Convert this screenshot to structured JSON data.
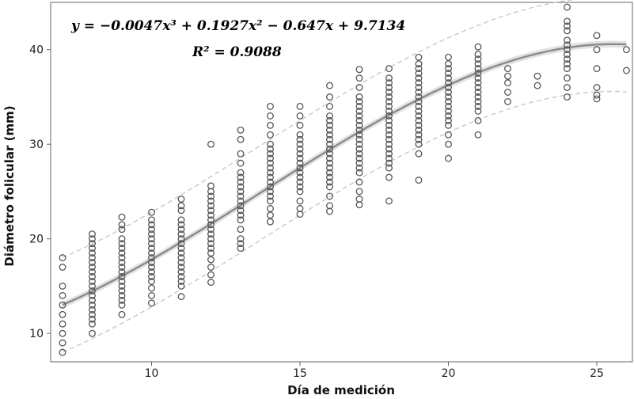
{
  "chart_data": {
    "type": "scatter",
    "title": "",
    "xlabel": "Día de medición",
    "ylabel": "Diámetro folicular (mm)",
    "xlim": [
      6.6,
      26.2
    ],
    "ylim": [
      7.0,
      45.0
    ],
    "x_ticks": [
      10,
      15,
      20,
      25
    ],
    "y_ticks": [
      10,
      20,
      30,
      40
    ],
    "equation": "y = −0.0047x³ + 0.1927x² − 0.647x + 9.7134",
    "r_squared": "R² = 0.9088",
    "fit": {
      "type": "cubic",
      "coefficients": {
        "a3": -0.0047,
        "a2": 0.1927,
        "a1": -0.647,
        "a0": 9.7134
      },
      "x_range": [
        7,
        26
      ],
      "prediction_band_halfwidth": 5
    },
    "points": [
      {
        "x": 7,
        "y": [
          8.0,
          9.0,
          10.0,
          11.0,
          12.0,
          13.0,
          14.0,
          15.0,
          17.0,
          18.0
        ]
      },
      {
        "x": 8,
        "y": [
          10.0,
          11.0,
          11.5,
          12.0,
          12.5,
          13.0,
          13.5,
          14.0,
          14.5,
          15.0,
          15.5,
          16.0,
          16.5,
          17.0,
          17.5,
          18.0,
          18.5,
          19.0,
          19.5,
          20.0,
          20.5
        ]
      },
      {
        "x": 9,
        "y": [
          12.0,
          13.0,
          13.5,
          14.0,
          14.5,
          15.0,
          15.5,
          16.0,
          16.5,
          17.0,
          17.5,
          18.0,
          18.5,
          19.0,
          19.5,
          20.0,
          21.0,
          21.5,
          22.3
        ]
      },
      {
        "x": 10,
        "y": [
          13.2,
          14.0,
          14.8,
          15.5,
          16.0,
          16.5,
          17.0,
          17.5,
          18.0,
          18.5,
          19.0,
          19.5,
          20.0,
          20.5,
          21.0,
          21.5,
          22.0,
          22.8
        ]
      },
      {
        "x": 11,
        "y": [
          13.9,
          15.0,
          15.5,
          16.0,
          16.5,
          17.0,
          17.5,
          18.0,
          18.5,
          19.0,
          19.5,
          20.0,
          20.5,
          21.0,
          21.5,
          22.0,
          23.0,
          23.5,
          24.2
        ]
      },
      {
        "x": 12,
        "y": [
          15.4,
          16.2,
          17.0,
          17.8,
          18.5,
          19.0,
          19.5,
          20.0,
          20.5,
          21.0,
          21.5,
          22.0,
          22.5,
          23.0,
          23.5,
          24.0,
          24.5,
          25.0,
          25.6,
          30.0
        ]
      },
      {
        "x": 13,
        "y": [
          19.0,
          19.5,
          20.0,
          21.0,
          22.0,
          22.5,
          23.0,
          23.5,
          24.0,
          24.5,
          25.0,
          25.5,
          26.0,
          26.5,
          27.0,
          28.0,
          29.0,
          30.5,
          31.5
        ]
      },
      {
        "x": 14,
        "y": [
          21.8,
          22.5,
          23.2,
          24.0,
          24.5,
          25.0,
          25.5,
          26.0,
          26.5,
          27.0,
          27.5,
          28.0,
          28.5,
          29.0,
          29.5,
          30.0,
          31.0,
          32.0,
          33.0,
          34.0
        ]
      },
      {
        "x": 15,
        "y": [
          22.6,
          23.2,
          24.0,
          25.0,
          25.5,
          26.0,
          26.5,
          27.0,
          27.5,
          28.0,
          28.5,
          29.0,
          29.5,
          30.0,
          30.5,
          31.0,
          32.0,
          33.0,
          34.0
        ]
      },
      {
        "x": 16,
        "y": [
          22.9,
          23.5,
          24.5,
          25.5,
          26.0,
          26.5,
          27.0,
          27.5,
          28.0,
          28.5,
          29.0,
          29.5,
          30.0,
          30.5,
          31.0,
          31.5,
          32.0,
          32.5,
          33.0,
          34.0,
          35.0,
          36.2
        ]
      },
      {
        "x": 17,
        "y": [
          23.6,
          24.2,
          25.0,
          26.0,
          27.0,
          27.5,
          28.0,
          28.5,
          29.0,
          29.5,
          30.0,
          30.5,
          31.0,
          31.5,
          32.0,
          32.5,
          33.0,
          33.5,
          34.0,
          34.5,
          35.0,
          36.0,
          37.0,
          37.9
        ]
      },
      {
        "x": 18,
        "y": [
          24.0,
          26.5,
          27.5,
          28.0,
          28.5,
          29.0,
          29.5,
          30.0,
          30.5,
          31.0,
          31.5,
          32.0,
          32.5,
          33.0,
          33.5,
          34.0,
          34.5,
          35.0,
          35.5,
          36.0,
          36.5,
          37.0,
          38.0
        ]
      },
      {
        "x": 19,
        "y": [
          26.2,
          29.0,
          30.0,
          30.5,
          31.0,
          31.5,
          32.0,
          32.5,
          33.0,
          33.5,
          34.0,
          34.5,
          35.0,
          35.5,
          36.0,
          36.5,
          37.0,
          37.5,
          38.0,
          38.5,
          39.2
        ]
      },
      {
        "x": 20,
        "y": [
          28.5,
          30.0,
          31.0,
          32.0,
          32.5,
          33.0,
          33.5,
          34.0,
          34.5,
          35.0,
          35.5,
          36.0,
          36.5,
          37.0,
          37.5,
          38.0,
          38.5,
          39.2
        ]
      },
      {
        "x": 21,
        "y": [
          31.0,
          32.5,
          33.5,
          34.0,
          34.5,
          35.0,
          35.5,
          36.0,
          36.5,
          37.0,
          37.5,
          38.0,
          38.5,
          39.0,
          39.5,
          40.3
        ]
      },
      {
        "x": 22,
        "y": [
          34.5,
          35.5,
          36.5,
          37.2,
          38.0
        ]
      },
      {
        "x": 23,
        "y": [
          36.2,
          37.2
        ]
      },
      {
        "x": 24,
        "y": [
          35.0,
          36.0,
          37.0,
          38.0,
          38.5,
          39.0,
          39.5,
          40.0,
          40.5,
          41.0,
          42.0,
          42.5,
          43.0,
          44.5
        ]
      },
      {
        "x": 25,
        "y": [
          34.8,
          35.2,
          36.0,
          38.0,
          40.0,
          41.5
        ]
      },
      {
        "x": 26,
        "y": [
          37.8,
          40.0
        ]
      }
    ]
  }
}
